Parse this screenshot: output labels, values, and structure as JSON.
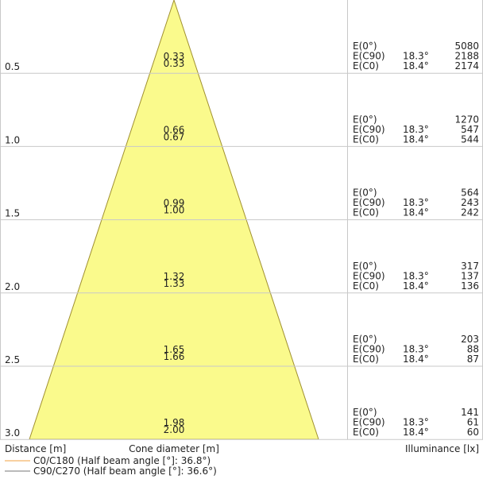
{
  "rows": [
    {
      "distance": "0.5",
      "cone": [
        "0.33",
        "0.33"
      ],
      "illuminance": [
        {
          "label": "E(0°)",
          "value": "5080"
        },
        {
          "label": "E(C90)",
          "angle": "18.3°",
          "value": "2188"
        },
        {
          "label": "E(C0)",
          "angle": "18.4°",
          "value": "2174"
        }
      ]
    },
    {
      "distance": "1.0",
      "cone": [
        "0.66",
        "0.67"
      ],
      "illuminance": [
        {
          "label": "E(0°)",
          "value": "1270"
        },
        {
          "label": "E(C90)",
          "angle": "18.3°",
          "value": "547"
        },
        {
          "label": "E(C0)",
          "angle": "18.4°",
          "value": "544"
        }
      ]
    },
    {
      "distance": "1.5",
      "cone": [
        "0.99",
        "1.00"
      ],
      "illuminance": [
        {
          "label": "E(0°)",
          "value": "564"
        },
        {
          "label": "E(C90)",
          "angle": "18.3°",
          "value": "243"
        },
        {
          "label": "E(C0)",
          "angle": "18.4°",
          "value": "242"
        }
      ]
    },
    {
      "distance": "2.0",
      "cone": [
        "1.32",
        "1.33"
      ],
      "illuminance": [
        {
          "label": "E(0°)",
          "value": "317"
        },
        {
          "label": "E(C90)",
          "angle": "18.3°",
          "value": "137"
        },
        {
          "label": "E(C0)",
          "angle": "18.4°",
          "value": "136"
        }
      ]
    },
    {
      "distance": "2.5",
      "cone": [
        "1.65",
        "1.66"
      ],
      "illuminance": [
        {
          "label": "E(0°)",
          "value": "203"
        },
        {
          "label": "E(C90)",
          "angle": "18.3°",
          "value": "88"
        },
        {
          "label": "E(C0)",
          "angle": "18.4°",
          "value": "87"
        }
      ]
    },
    {
      "distance": "3.0",
      "cone": [
        "1.98",
        "2.00"
      ],
      "illuminance": [
        {
          "label": "E(0°)",
          "value": "141"
        },
        {
          "label": "E(C90)",
          "angle": "18.3°",
          "value": "61"
        },
        {
          "label": "E(C0)",
          "angle": "18.4°",
          "value": "60"
        }
      ]
    }
  ],
  "footer": {
    "distance": "Distance [m]",
    "cone": "Cone diameter [m]",
    "illuminance": "Illuminance [lx]"
  },
  "legend": [
    {
      "label": "C0/C180 (Half beam angle [°]: 36.8°)",
      "color": "#f0a040"
    },
    {
      "label": "C90/C270 (Half beam angle [°]: 36.6°)",
      "color": "#777777"
    }
  ]
}
